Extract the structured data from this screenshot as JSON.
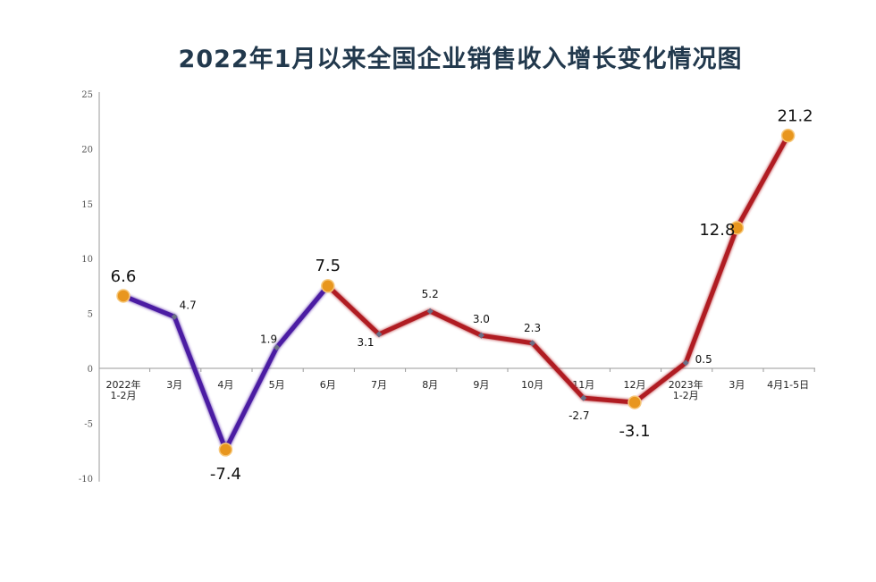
{
  "title": "2022年1月以来全国企业销售收入增长变化情况图",
  "colors": {
    "series_2022_h1": "#4b1fa3",
    "series_rest": "#b01e23",
    "highlight_marker": "#e8961e",
    "small_marker": "#6b6f86",
    "axis": "#9a9a9a",
    "title": "#22394d"
  },
  "chart_data": {
    "type": "line",
    "title": "2022年1月以来全国企业销售收入增长变化情况图",
    "xlabel": "",
    "ylabel": "",
    "ylim": [
      -10,
      25
    ],
    "yticks": [
      25,
      20,
      15,
      10,
      5,
      0,
      -5,
      -10
    ],
    "grid": false,
    "legend": null,
    "categories": [
      "2022年 1-2月",
      "3月",
      "4月",
      "5月",
      "6月",
      "7月",
      "8月",
      "9月",
      "10月",
      "11月",
      "12月",
      "2023年 1-2月",
      "3月",
      "4月1-5日"
    ],
    "values": [
      6.6,
      4.7,
      -7.4,
      1.9,
      7.5,
      3.1,
      5.2,
      3.0,
      2.3,
      -2.7,
      -3.1,
      0.5,
      12.8,
      21.2
    ],
    "value_labels": [
      "6.6",
      "4.7",
      "-7.4",
      "1.9",
      "7.5",
      "3.1",
      "5.2",
      "3.0",
      "2.3",
      "-2.7",
      "-3.1",
      "0.5",
      "12.8",
      "21.2"
    ],
    "highlighted_points": [
      0,
      2,
      4,
      10,
      12,
      13
    ],
    "segments": [
      {
        "name": "purple segment",
        "from": 0,
        "to": 4,
        "color": "#4b1fa3"
      },
      {
        "name": "red segment",
        "from": 4,
        "to": 13,
        "color": "#b01e23"
      }
    ]
  }
}
